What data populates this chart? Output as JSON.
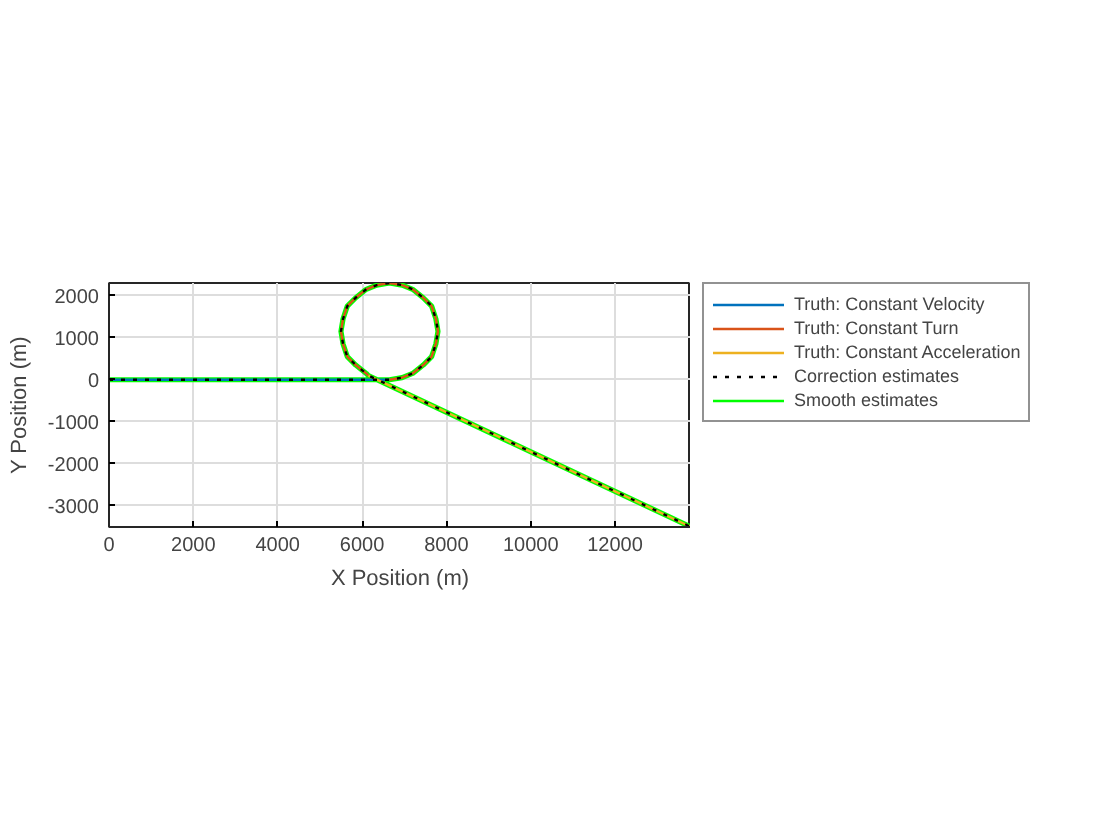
{
  "chart_data": {
    "type": "line",
    "xlabel": "X Position (m)",
    "ylabel": "Y Position (m)",
    "xlim": [
      0,
      13800
    ],
    "ylim": [
      -3500,
      2300
    ],
    "xticks": [
      0,
      2000,
      4000,
      6000,
      8000,
      10000,
      12000
    ],
    "yticks": [
      -3000,
      -2000,
      -1000,
      0,
      1000,
      2000
    ],
    "grid": true,
    "legend": "right",
    "marker": "none",
    "series": [
      {
        "name": "Truth: Constant Velocity",
        "color": "#0072bd",
        "line_style": "solid",
        "x": [
          0,
          6650
        ],
        "values": [
          0,
          0
        ]
      },
      {
        "name": "Truth: Constant Turn",
        "color": "#d95319",
        "line_style": "solid",
        "x": [
          6650,
          6950,
          7200,
          7450,
          7650,
          7750,
          7800,
          7750,
          7650,
          7450,
          7200,
          6950,
          6650,
          6350,
          6100,
          5850,
          5650,
          5550,
          5500,
          5550,
          5650,
          5850,
          6100,
          6150
        ],
        "values": [
          0,
          50,
          150,
          350,
          550,
          850,
          1150,
          1450,
          1750,
          1950,
          2150,
          2250,
          2300,
          2250,
          2150,
          1950,
          1750,
          1450,
          1150,
          850,
          550,
          350,
          150,
          100
        ]
      },
      {
        "name": "Truth: Constant Acceleration",
        "color": "#edb120",
        "line_style": "solid",
        "x": [
          6150,
          13800
        ],
        "values": [
          100,
          -3500
        ]
      },
      {
        "name": "Correction estimates",
        "color": "#000000",
        "line_style": "dotted",
        "x": [
          0,
          6650,
          6950,
          7200,
          7450,
          7650,
          7750,
          7800,
          7750,
          7650,
          7450,
          7200,
          6950,
          6650,
          6350,
          6100,
          5850,
          5650,
          5550,
          5500,
          5550,
          5650,
          5850,
          6100,
          6150,
          13800
        ],
        "values": [
          0,
          0,
          50,
          150,
          350,
          550,
          850,
          1150,
          1450,
          1750,
          1950,
          2150,
          2250,
          2300,
          2250,
          2150,
          1950,
          1750,
          1450,
          1150,
          850,
          550,
          350,
          150,
          100,
          -3500
        ]
      },
      {
        "name": "Smooth estimates",
        "color": "#00ff00",
        "line_style": "solid",
        "x": [
          0,
          6650,
          6950,
          7200,
          7450,
          7650,
          7750,
          7800,
          7750,
          7650,
          7450,
          7200,
          6950,
          6650,
          6350,
          6100,
          5850,
          5650,
          5550,
          5500,
          5550,
          5650,
          5850,
          6100,
          6150,
          13800
        ],
        "values": [
          0,
          0,
          50,
          150,
          350,
          550,
          850,
          1150,
          1450,
          1750,
          1950,
          2150,
          2250,
          2300,
          2250,
          2150,
          1950,
          1750,
          1450,
          1150,
          850,
          550,
          350,
          150,
          100,
          -3500
        ]
      }
    ]
  }
}
